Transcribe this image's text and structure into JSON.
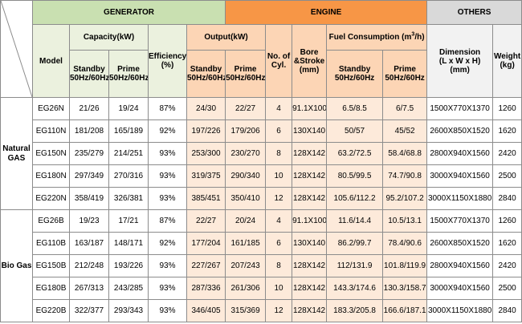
{
  "headers": {
    "generator": "GENERATOR",
    "engine": "ENGINE",
    "others": "OTHERS",
    "model": "Model",
    "capacity": "Capacity(kW)",
    "efficiency_line1": "Efficiency",
    "efficiency_line2": "(%)",
    "output": "Output(kW)",
    "cyl_line1": "No. of",
    "cyl_line2": "Cyl.",
    "bore_line1": "Bore",
    "bore_line2": "&Stroke",
    "bore_line3": "(mm)",
    "fuel_prefix": "Fuel Consumption (m",
    "fuel_sup": "3",
    "fuel_suffix": "/h)",
    "dim_line1": "Dimension",
    "dim_line2": "(L x W x H)",
    "dim_line3": "(mm)",
    "weight_line1": "Weight",
    "weight_line2": "(kg)",
    "standby": "Standby",
    "prime": "Prime",
    "hz": "50Hz/60Hz"
  },
  "groups": {
    "natural_gas_line1": "Natural",
    "natural_gas_line2": "GAS",
    "bio_gas": "Bio Gas"
  },
  "rows": [
    {
      "model": "EG26N",
      "cap_standby": "21/26",
      "cap_prime": "19/24",
      "efficiency": "87%",
      "out_standby": "24/30",
      "out_prime": "22/27",
      "cyl": "4",
      "bore": "91.1X100",
      "fuel_standby": "6.5/8.5",
      "fuel_prime": "6/7.5",
      "dimension": "1500X770X1370",
      "weight": "1260"
    },
    {
      "model": "EG110N",
      "cap_standby": "181/208",
      "cap_prime": "165/189",
      "efficiency": "92%",
      "out_standby": "197/226",
      "out_prime": "179/206",
      "cyl": "6",
      "bore": "130X140",
      "fuel_standby": "50/57",
      "fuel_prime": "45/52",
      "dimension": "2600X850X1520",
      "weight": "1620"
    },
    {
      "model": "EG150N",
      "cap_standby": "235/279",
      "cap_prime": "214/251",
      "efficiency": "93%",
      "out_standby": "253/300",
      "out_prime": "230/270",
      "cyl": "8",
      "bore": "128X142",
      "fuel_standby": "63.2/72.5",
      "fuel_prime": "58.4/68.8",
      "dimension": "2800X940X1560",
      "weight": "2420"
    },
    {
      "model": "EG180N",
      "cap_standby": "297/349",
      "cap_prime": "270/316",
      "efficiency": "93%",
      "out_standby": "319/375",
      "out_prime": "290/340",
      "cyl": "10",
      "bore": "128X142",
      "fuel_standby": "80.5/99.5",
      "fuel_prime": "74.7/90.8",
      "dimension": "3000X940X1560",
      "weight": "2500"
    },
    {
      "model": "EG220N",
      "cap_standby": "358/419",
      "cap_prime": "326/381",
      "efficiency": "93%",
      "out_standby": "385/451",
      "out_prime": "350/410",
      "cyl": "12",
      "bore": "128X142",
      "fuel_standby": "105.6/112.2",
      "fuel_prime": "95.2/107.2",
      "dimension": "3000X1150X1880",
      "weight": "2840"
    },
    {
      "model": "EG26B",
      "cap_standby": "19/23",
      "cap_prime": "17/21",
      "efficiency": "87%",
      "out_standby": "22/27",
      "out_prime": "20/24",
      "cyl": "4",
      "bore": "91.1X100",
      "fuel_standby": "11.6/14.4",
      "fuel_prime": "10.5/13.1",
      "dimension": "1500X770X1370",
      "weight": "1260"
    },
    {
      "model": "EG110B",
      "cap_standby": "163/187",
      "cap_prime": "148/171",
      "efficiency": "92%",
      "out_standby": "177/204",
      "out_prime": "161/185",
      "cyl": "6",
      "bore": "130X140",
      "fuel_standby": "86.2/99.7",
      "fuel_prime": "78.4/90.6",
      "dimension": "2600X850X1520",
      "weight": "1620"
    },
    {
      "model": "EG150B",
      "cap_standby": "212/248",
      "cap_prime": "193/226",
      "efficiency": "93%",
      "out_standby": "227/267",
      "out_prime": "207/243",
      "cyl": "8",
      "bore": "128X142",
      "fuel_standby": "112/131.9",
      "fuel_prime": "101.8/119.9",
      "dimension": "2800X940X1560",
      "weight": "2420"
    },
    {
      "model": "EG180B",
      "cap_standby": "267/313",
      "cap_prime": "243/285",
      "efficiency": "93%",
      "out_standby": "287/336",
      "out_prime": "261/306",
      "cyl": "10",
      "bore": "128X142",
      "fuel_standby": "143.3/174.6",
      "fuel_prime": "130.3/158.7",
      "dimension": "3000X940X1560",
      "weight": "2500"
    },
    {
      "model": "EG220B",
      "cap_standby": "322/377",
      "cap_prime": "293/343",
      "efficiency": "93%",
      "out_standby": "346/405",
      "out_prime": "315/369",
      "cyl": "12",
      "bore": "128X142",
      "fuel_standby": "183.3/205.8",
      "fuel_prime": "166.6/187.1",
      "dimension": "3000X1150X1880",
      "weight": "2840"
    }
  ],
  "colors": {
    "generator_header": "#c9e0b1",
    "engine_header": "#f79646",
    "others_header": "#d9d9d9",
    "engine_cells": "#fdeada"
  }
}
